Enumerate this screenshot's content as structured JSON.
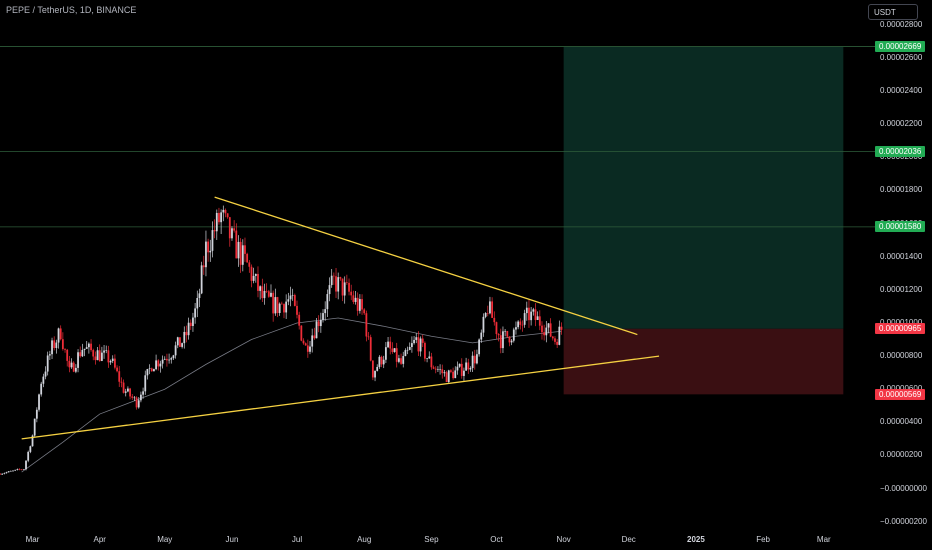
{
  "header": {
    "symbol_title": "PEPE / TetherUS, 1D, BINANCE",
    "currency_label": "USDT"
  },
  "colors": {
    "background": "#000000",
    "up_candle": "#d1d4dc",
    "down_candle": "#ef2d38",
    "trendline": "#f5d142",
    "moving_average": "#787b86",
    "target_zone": "#0a2a22",
    "stop_zone": "#3a0f12",
    "level_line": "#2e5d3a",
    "badge_green": "#22ab54",
    "badge_red": "#f23645"
  },
  "chart_data": {
    "type": "candlestick",
    "x_labels": [
      "Mar",
      "Apr",
      "May",
      "Jun",
      "Jul",
      "Aug",
      "Sep",
      "Oct",
      "Nov",
      "Dec",
      "2025",
      "Feb",
      "Mar"
    ],
    "y_ticks": [
      "0.00002800",
      "0.00002600",
      "0.00002400",
      "0.00002200",
      "0.00002000",
      "0.00001800",
      "0.00001600",
      "0.00001400",
      "0.00001200",
      "0.00001000",
      "0.00000800",
      "0.00000600",
      "0.00000400",
      "0.00000200",
      "−0.00000000",
      "−0.00000200"
    ],
    "y_tick_values": [
      2.8e-05,
      2.6e-05,
      2.4e-05,
      2.2e-05,
      2e-05,
      1.8e-05,
      1.6e-05,
      1.4e-05,
      1.2e-05,
      1e-05,
      8e-06,
      6e-06,
      4e-06,
      2e-06,
      0.0,
      -2e-06
    ],
    "ylim": [
      -2.5e-06,
      2.95e-05
    ],
    "price_levels": [
      {
        "label": "0.00002669",
        "value": 2.669e-05,
        "color": "green"
      },
      {
        "label": "0.00002036",
        "value": 2.036e-05,
        "color": "green"
      },
      {
        "label": "0.00001580",
        "value": 1.58e-05,
        "color": "green"
      },
      {
        "label": "0.00000965",
        "value": 9.65e-06,
        "color": "red"
      },
      {
        "label": "0.00000569",
        "value": 5.69e-06,
        "color": "red"
      }
    ],
    "position": {
      "entry": 9.65e-06,
      "target": 2.669e-05,
      "stop": 5.69e-06,
      "start_date": "2024-11-01",
      "end_date": "2025-03-10"
    },
    "trendlines": [
      {
        "name": "resistance",
        "from": {
          "date": "2024-05-24",
          "value": 1.76e-05
        },
        "to": {
          "date": "2024-12-05",
          "value": 9.3e-06
        }
      },
      {
        "name": "support",
        "from": {
          "date": "2024-02-25",
          "value": 3e-06
        },
        "to": {
          "date": "2024-12-15",
          "value": 8e-06
        }
      }
    ],
    "close_path": [
      {
        "date": "2024-02-15",
        "value": 9e-07
      },
      {
        "date": "2024-02-26",
        "value": 1.2e-06
      },
      {
        "date": "2024-03-01",
        "value": 3.2e-06
      },
      {
        "date": "2024-03-05",
        "value": 6.5e-06
      },
      {
        "date": "2024-03-10",
        "value": 8.5e-06
      },
      {
        "date": "2024-03-14",
        "value": 9.5e-06
      },
      {
        "date": "2024-03-18",
        "value": 7e-06
      },
      {
        "date": "2024-03-24",
        "value": 8.5e-06
      },
      {
        "date": "2024-03-30",
        "value": 8.2e-06
      },
      {
        "date": "2024-04-06",
        "value": 7.8e-06
      },
      {
        "date": "2024-04-12",
        "value": 6e-06
      },
      {
        "date": "2024-04-18",
        "value": 5.2e-06
      },
      {
        "date": "2024-04-25",
        "value": 7.5e-06
      },
      {
        "date": "2024-05-02",
        "value": 8e-06
      },
      {
        "date": "2024-05-10",
        "value": 9e-06
      },
      {
        "date": "2024-05-16",
        "value": 1.1e-05
      },
      {
        "date": "2024-05-20",
        "value": 1.45e-05
      },
      {
        "date": "2024-05-27",
        "value": 1.65e-05
      },
      {
        "date": "2024-06-01",
        "value": 1.5e-05
      },
      {
        "date": "2024-06-08",
        "value": 1.35e-05
      },
      {
        "date": "2024-06-15",
        "value": 1.15e-05
      },
      {
        "date": "2024-06-22",
        "value": 1.1e-05
      },
      {
        "date": "2024-06-28",
        "value": 1.15e-05
      },
      {
        "date": "2024-07-05",
        "value": 8.5e-06
      },
      {
        "date": "2024-07-12",
        "value": 1.05e-05
      },
      {
        "date": "2024-07-18",
        "value": 1.25e-05
      },
      {
        "date": "2024-07-25",
        "value": 1.18e-05
      },
      {
        "date": "2024-08-01",
        "value": 1.05e-05
      },
      {
        "date": "2024-08-05",
        "value": 7e-06
      },
      {
        "date": "2024-08-12",
        "value": 8.5e-06
      },
      {
        "date": "2024-08-18",
        "value": 7.5e-06
      },
      {
        "date": "2024-08-25",
        "value": 9e-06
      },
      {
        "date": "2024-09-01",
        "value": 7.5e-06
      },
      {
        "date": "2024-09-08",
        "value": 6.8e-06
      },
      {
        "date": "2024-09-15",
        "value": 7.2e-06
      },
      {
        "date": "2024-09-22",
        "value": 8e-06
      },
      {
        "date": "2024-09-27",
        "value": 1.1e-05
      },
      {
        "date": "2024-10-03",
        "value": 9e-06
      },
      {
        "date": "2024-10-10",
        "value": 9.5e-06
      },
      {
        "date": "2024-10-16",
        "value": 1.05e-05
      },
      {
        "date": "2024-10-22",
        "value": 1e-05
      },
      {
        "date": "2024-10-28",
        "value": 9e-06
      },
      {
        "date": "2024-10-31",
        "value": 9.65e-06
      }
    ],
    "moving_average": [
      {
        "date": "2024-02-25",
        "value": 1e-06
      },
      {
        "date": "2024-03-15",
        "value": 2.8e-06
      },
      {
        "date": "2024-04-01",
        "value": 4.5e-06
      },
      {
        "date": "2024-04-15",
        "value": 5.2e-06
      },
      {
        "date": "2024-05-01",
        "value": 6e-06
      },
      {
        "date": "2024-05-20",
        "value": 7.5e-06
      },
      {
        "date": "2024-06-10",
        "value": 9e-06
      },
      {
        "date": "2024-07-01",
        "value": 1e-05
      },
      {
        "date": "2024-07-20",
        "value": 1.03e-05
      },
      {
        "date": "2024-08-10",
        "value": 9.8e-06
      },
      {
        "date": "2024-09-01",
        "value": 9.2e-06
      },
      {
        "date": "2024-09-20",
        "value": 8.8e-06
      },
      {
        "date": "2024-10-10",
        "value": 9.2e-06
      },
      {
        "date": "2024-10-31",
        "value": 9.5e-06
      }
    ]
  }
}
